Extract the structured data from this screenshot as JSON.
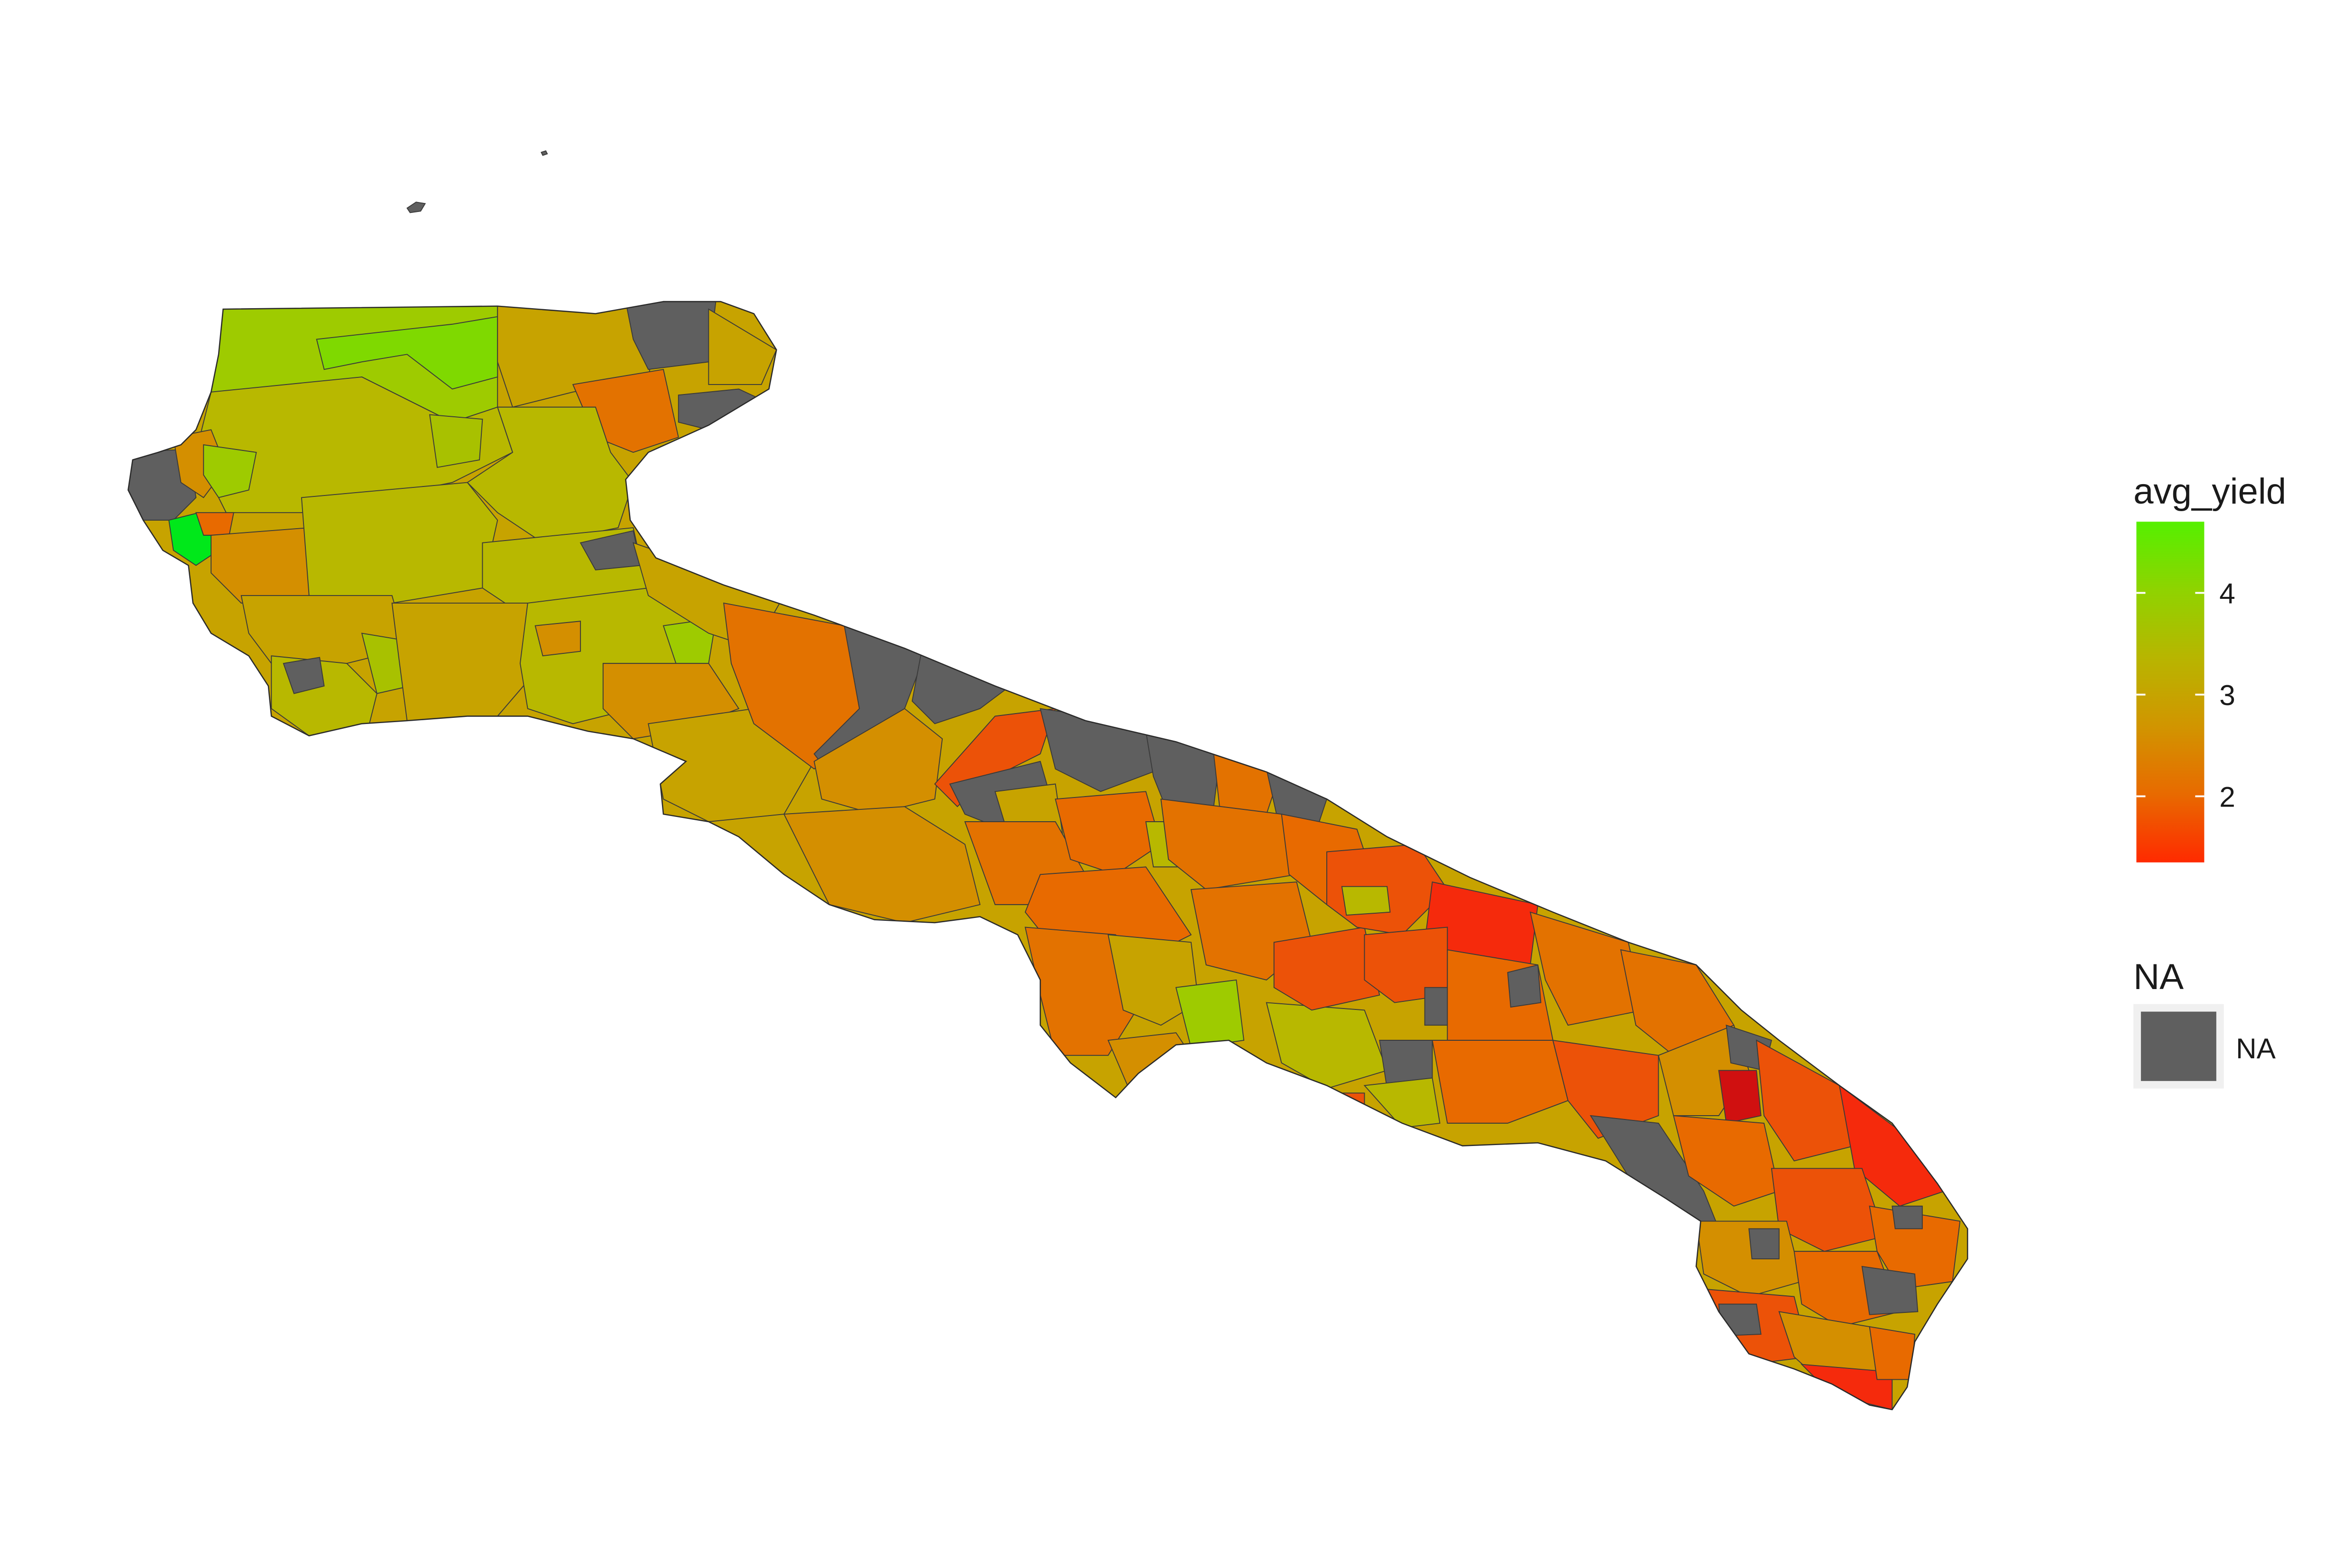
{
  "map": {
    "region": "Puglia",
    "fill_variable": "avg_yield",
    "background": "#ffffff",
    "border_color": "#3a3a3a",
    "na_color": "#5f5f5f"
  },
  "legend": {
    "title": "avg_yield",
    "scale_min": 1.35,
    "scale_max": 4.7,
    "ticks": [
      {
        "value": 2,
        "label": "2"
      },
      {
        "value": 3,
        "label": "3"
      },
      {
        "value": 4,
        "label": "4"
      }
    ],
    "gradient_colors": [
      "#ff2a00",
      "#e86a00",
      "#d19500",
      "#b8b500",
      "#8fd300",
      "#55f000"
    ],
    "na_title": "NA",
    "na_label": "NA"
  },
  "colors": {
    "red": "#f52a0c",
    "orange_red": "#ec5208",
    "orange": "#e37200",
    "amber": "#d48f00",
    "olive_gold": "#c7a300",
    "olive": "#b8b800",
    "yellow_green": "#9ecb00",
    "green": "#00e81a",
    "na": "#5f5f5f"
  }
}
